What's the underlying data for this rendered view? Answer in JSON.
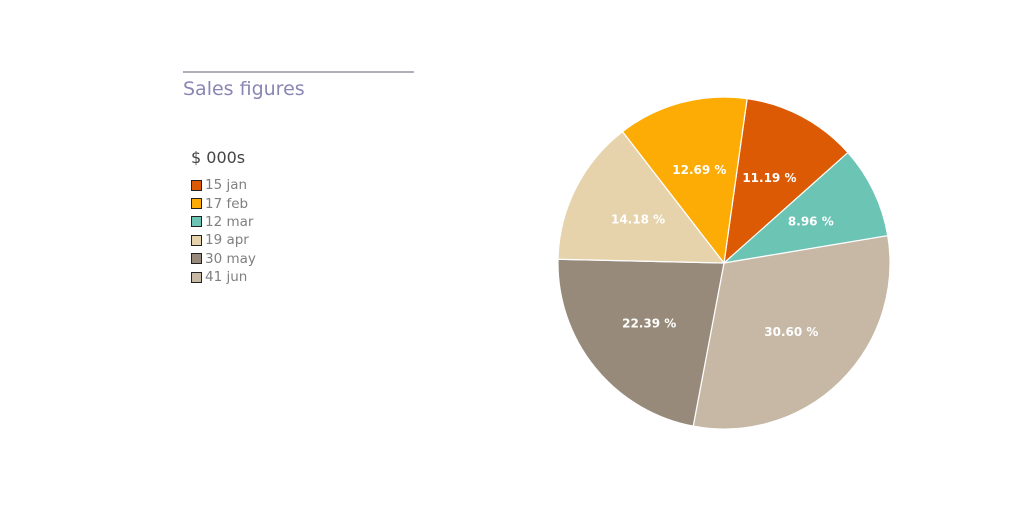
{
  "chart_data": {
    "type": "pie",
    "title": "Sales figures",
    "legend_title": "$ 000s",
    "legend_position": "left",
    "categories": [
      "jan",
      "feb",
      "mar",
      "apr",
      "may",
      "jun"
    ],
    "values": [
      15,
      17,
      12,
      19,
      30,
      41
    ],
    "legend_labels": [
      "15 jan",
      "17 feb",
      "12 mar",
      "19 apr",
      "30 may",
      "41 jun"
    ],
    "percent_labels": [
      "11.19 %",
      "12.69 %",
      "8.96 %",
      "14.18 %",
      "22.39 %",
      "30.60 %"
    ],
    "colors": [
      "#dc5a04",
      "#fcac04",
      "#6cc4b4",
      "#e6d2ab",
      "#978a7a",
      "#c6b8a5"
    ]
  }
}
